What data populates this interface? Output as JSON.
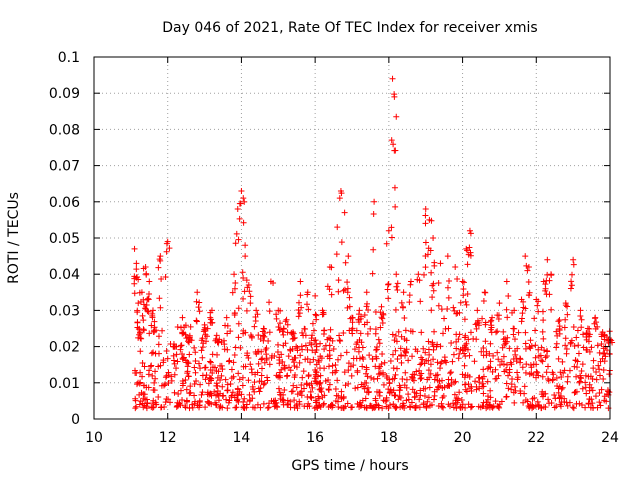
{
  "chart_data": {
    "type": "scatter",
    "title": "Day 046 of 2021, Rate Of TEC Index for receiver xmis",
    "xlabel": "GPS time / hours",
    "ylabel": "ROTI / TECUs",
    "xlim": [
      10,
      24
    ],
    "ylim": [
      0,
      0.1
    ],
    "x_ticks": [
      "10",
      "12",
      "14",
      "16",
      "18",
      "20",
      "22",
      "24"
    ],
    "y_ticks": [
      "0",
      "0.01",
      "0.02",
      "0.03",
      "0.04",
      "0.05",
      "0.06",
      "0.07",
      "0.08",
      "0.09",
      "0.1"
    ],
    "grid": true,
    "marker": "+",
    "series": [
      {
        "name": "ROTI",
        "color": "#ff0000",
        "x": [
          11.1,
          11.15,
          11.2,
          11.25,
          11.3,
          11.4,
          11.5,
          11.6,
          11.8,
          12.0,
          12.2,
          12.4,
          12.6,
          12.8,
          13.0,
          13.2,
          13.4,
          13.6,
          13.8,
          13.9,
          14.0,
          14.05,
          14.1,
          14.2,
          14.4,
          14.6,
          14.8,
          15.0,
          15.2,
          15.4,
          15.6,
          15.8,
          16.0,
          16.2,
          16.4,
          16.6,
          16.7,
          16.8,
          16.9,
          17.0,
          17.2,
          17.4,
          17.6,
          17.8,
          18.0,
          18.1,
          18.15,
          18.2,
          18.4,
          18.6,
          18.8,
          19.0,
          19.1,
          19.2,
          19.4,
          19.6,
          19.8,
          20.0,
          20.1,
          20.2,
          20.4,
          20.6,
          20.8,
          21.0,
          21.2,
          21.4,
          21.6,
          21.7,
          21.8,
          22.0,
          22.2,
          22.3,
          22.4,
          22.6,
          22.8,
          23.0,
          23.2,
          23.4,
          23.6,
          23.8,
          24.0
        ],
        "y": [
          0.047,
          0.043,
          0.032,
          0.024,
          0.035,
          0.042,
          0.038,
          0.03,
          0.045,
          0.049,
          0.02,
          0.028,
          0.023,
          0.035,
          0.026,
          0.03,
          0.022,
          0.028,
          0.04,
          0.058,
          0.063,
          0.061,
          0.048,
          0.037,
          0.03,
          0.025,
          0.038,
          0.03,
          0.027,
          0.024,
          0.038,
          0.035,
          0.034,
          0.03,
          0.042,
          0.053,
          0.063,
          0.057,
          0.045,
          0.028,
          0.03,
          0.035,
          0.06,
          0.031,
          0.052,
          0.094,
          0.089,
          0.04,
          0.035,
          0.038,
          0.04,
          0.058,
          0.055,
          0.05,
          0.043,
          0.045,
          0.042,
          0.038,
          0.047,
          0.052,
          0.03,
          0.035,
          0.028,
          0.032,
          0.038,
          0.03,
          0.033,
          0.045,
          0.042,
          0.033,
          0.038,
          0.044,
          0.04,
          0.027,
          0.032,
          0.044,
          0.03,
          0.025,
          0.028,
          0.024,
          0.022
        ]
      }
    ],
    "density_note_value_range": [
      0.003,
      0.025
    ]
  }
}
